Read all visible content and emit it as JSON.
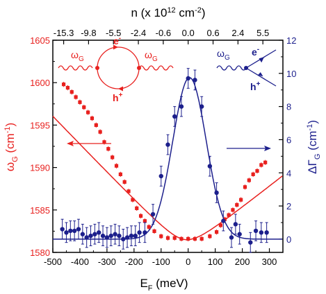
{
  "chart_data": {
    "type": "scatter",
    "axes": {
      "bottom": {
        "label_main": "E",
        "label_sub": "F",
        "label_tail": " (meV)",
        "ticks": [
          "-500",
          "-400",
          "-300",
          "-200",
          "-100",
          "0",
          "100",
          "200",
          "300"
        ],
        "tick_values": [
          -500,
          -400,
          -300,
          -200,
          -100,
          0,
          100,
          200,
          300
        ],
        "range": [
          -500,
          350
        ]
      },
      "top": {
        "label_pre": "n (x 10",
        "label_sup1": "12",
        "label_mid": " cm",
        "label_sup2": "-2",
        "label_post": ")",
        "ticks": [
          "-15.3",
          "-9.8",
          "-5.5",
          "-2.4",
          "-0.6",
          "0.0",
          "0.6",
          "2.4",
          "5.5"
        ],
        "tick_ef": [
          -460,
          -368,
          -276,
          -184,
          -92,
          0,
          92,
          184,
          276
        ]
      },
      "left": {
        "label_main": "ω",
        "label_sub": "G",
        "label_tail_pre": " (cm",
        "label_sup": "-1",
        "label_tail_post": ")",
        "ticks": [
          "1580",
          "1585",
          "1590",
          "1595",
          "1600",
          "1605"
        ],
        "tick_values": [
          1580,
          1585,
          1590,
          1595,
          1600,
          1605
        ],
        "range": [
          1580,
          1605
        ],
        "color": "#e8201e"
      },
      "right": {
        "label_main": "ΔΓ",
        "label_sub": "G",
        "label_tail_pre": " (cm",
        "label_sup": "-1",
        "label_tail_post": ")",
        "ticks": [
          "0",
          "2",
          "4",
          "6",
          "8",
          "10",
          "12"
        ],
        "tick_values": [
          0,
          2,
          4,
          6,
          8,
          10,
          12
        ],
        "range": [
          -0.8,
          12
        ],
        "color": "#1c1f8c"
      }
    },
    "series": [
      {
        "axis": "left",
        "marker": "square",
        "color": "#e8201e",
        "x": [
          -460,
          -445,
          -430,
          -415,
          -400,
          -385,
          -370,
          -355,
          -340,
          -325,
          -310,
          -295,
          -280,
          -265,
          -250,
          -235,
          -220,
          -205,
          -190,
          -175,
          -160,
          -145,
          -125,
          -100,
          -75,
          -50,
          -25,
          0,
          25,
          50,
          80,
          105,
          120,
          135,
          150,
          165,
          180,
          195,
          210,
          225,
          240,
          255,
          270,
          285
        ],
        "y": [
          1599.8,
          1599.4,
          1598.9,
          1598.3,
          1597.7,
          1597.1,
          1596.5,
          1595.8,
          1595.0,
          1594.2,
          1593.0,
          1592.2,
          1591.2,
          1590.2,
          1589.2,
          1588.3,
          1587.2,
          1586.2,
          1585.2,
          1584.3,
          1583.7,
          1583.0,
          1582.5,
          1581.9,
          1581.7,
          1581.7,
          1581.6,
          1581.6,
          1581.6,
          1581.6,
          1581.9,
          1582.4,
          1583.2,
          1583.9,
          1584.4,
          1585.0,
          1585.6,
          1586.2,
          1587.7,
          1588.5,
          1589.2,
          1589.6,
          1590.3,
          1590.6
        ],
        "err": [
          0.3,
          0.3,
          0.3,
          0.3,
          0.3,
          0.3,
          0.3,
          0.3,
          0.3,
          0.3,
          0.3,
          0.3,
          0.3,
          0.3,
          0.3,
          0.3,
          0.3,
          0.3,
          0.3,
          0.3,
          0.3,
          0.3,
          0.3,
          0.3,
          0.3,
          0.3,
          0.3,
          0.3,
          0.3,
          0.3,
          0.3,
          0.3,
          0.3,
          0.3,
          0.3,
          0.3,
          0.3,
          0.3,
          0.3,
          0.3,
          0.3,
          0.3,
          0.3,
          0.3
        ]
      },
      {
        "axis": "right",
        "marker": "circle",
        "color": "#1c1f8c",
        "x": [
          -465,
          -450,
          -435,
          -420,
          -405,
          -390,
          -375,
          -360,
          -345,
          -330,
          -315,
          -300,
          -285,
          -270,
          -255,
          -240,
          -225,
          -210,
          -195,
          -180,
          -160,
          -130,
          -100,
          -75,
          -50,
          -25,
          0,
          25,
          50,
          80,
          105,
          130,
          160,
          175,
          190,
          230,
          250,
          270,
          290
        ],
        "y": [
          0.6,
          0.4,
          0.5,
          0.5,
          0.6,
          0.3,
          0.1,
          0.2,
          0.3,
          0.4,
          0.2,
          0.1,
          0.2,
          0.3,
          0.2,
          0.0,
          0.1,
          0.2,
          0.2,
          0.4,
          0.4,
          1.5,
          3.8,
          5.7,
          7.4,
          8.0,
          9.7,
          9.6,
          8.0,
          4.4,
          2.8,
          1.1,
          0.1,
          0.9,
          0.3,
          -0.2,
          0.5,
          0.4,
          0.4
        ],
        "err": [
          0.6,
          0.6,
          0.6,
          0.6,
          0.6,
          0.6,
          0.6,
          0.6,
          0.6,
          0.6,
          0.6,
          0.6,
          0.6,
          0.6,
          0.6,
          0.6,
          0.6,
          0.6,
          0.6,
          0.6,
          0.6,
          0.6,
          0.6,
          0.6,
          0.6,
          0.6,
          0.6,
          0.6,
          0.6,
          0.6,
          0.6,
          0.6,
          0.6,
          0.6,
          0.6,
          0.6,
          0.6,
          0.6,
          0.6
        ]
      }
    ],
    "annotations": {
      "left_diagram": {
        "omega_main": "ω",
        "omega_sub": "G",
        "electron_main": "e",
        "electron_sup": "-",
        "hole_main": "h",
        "hole_sup": "+"
      },
      "right_diagram": {
        "omega_main": "ω",
        "omega_sub": "G",
        "electron_main": "e",
        "electron_sup": "-",
        "hole_main": "h",
        "hole_sup": "+"
      }
    }
  }
}
